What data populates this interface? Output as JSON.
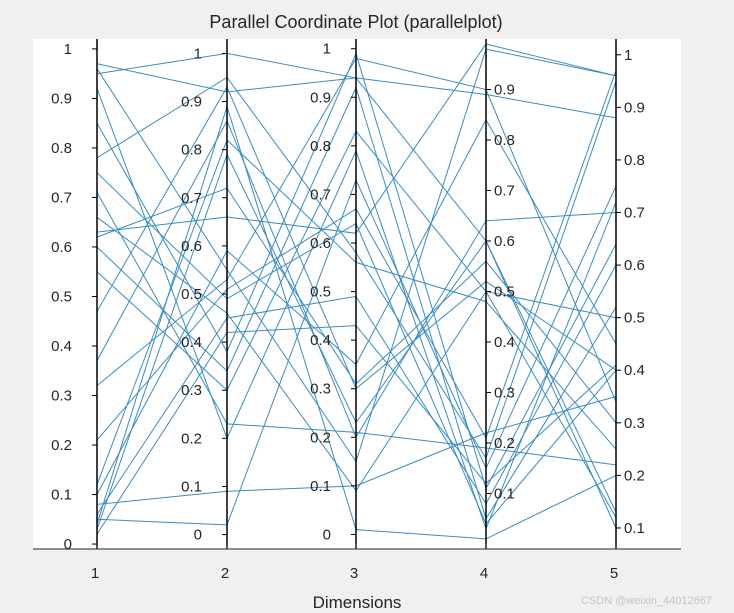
{
  "chart_data": {
    "type": "parallel-coordinates",
    "title": "Parallel Coordinate Plot (parallelplot)",
    "xlabel": "Dimensions",
    "dimensions": [
      "1",
      "2",
      "3",
      "4",
      "5"
    ],
    "axes": [
      {
        "name": "1",
        "range": [
          -0.01,
          1.02
        ],
        "ticks": [
          0,
          0.1,
          0.2,
          0.3,
          0.4,
          0.5,
          0.6,
          0.7,
          0.8,
          0.9,
          1
        ],
        "tick_labels": [
          "0",
          "0.1",
          "0.2",
          "0.3",
          "0.4",
          "0.5",
          "0.6",
          "0.7",
          "0.8",
          "0.9",
          "1"
        ],
        "label_side": "left"
      },
      {
        "name": "2",
        "range": [
          -0.03,
          1.03
        ],
        "ticks": [
          0,
          0.1,
          0.2,
          0.3,
          0.4,
          0.5,
          0.6,
          0.7,
          0.8,
          0.9,
          1
        ],
        "tick_labels": [
          "0",
          "0.1",
          "0.2",
          "0.3",
          "0.4",
          "0.5",
          "0.6",
          "0.7",
          "0.8",
          "0.9",
          "1"
        ],
        "label_side": "left"
      },
      {
        "name": "3",
        "range": [
          -0.03,
          1.02
        ],
        "ticks": [
          0,
          0.1,
          0.2,
          0.3,
          0.4,
          0.5,
          0.6,
          0.7,
          0.8,
          0.9,
          1
        ],
        "tick_labels": [
          "0",
          "0.1",
          "0.2",
          "0.3",
          "0.4",
          "0.5",
          "0.6",
          "0.7",
          "0.8",
          "0.9",
          "1"
        ],
        "label_side": "left"
      },
      {
        "name": "4",
        "range": [
          -0.01,
          1.0
        ],
        "ticks": [
          0.1,
          0.2,
          0.3,
          0.4,
          0.5,
          0.6,
          0.7,
          0.8,
          0.9
        ],
        "tick_labels": [
          "0.1",
          "0.2",
          "0.3",
          "0.4",
          "0.5",
          "0.6",
          "0.7",
          "0.8",
          "0.9"
        ],
        "label_side": "right"
      },
      {
        "name": "5",
        "range": [
          0.06,
          1.03
        ],
        "ticks": [
          0.1,
          0.2,
          0.3,
          0.4,
          0.5,
          0.6,
          0.7,
          0.8,
          0.9,
          1
        ],
        "tick_labels": [
          "0.1",
          "0.2",
          "0.3",
          "0.4",
          "0.5",
          "0.6",
          "0.7",
          "0.8",
          "0.9",
          "1"
        ],
        "label_side": "right"
      }
    ],
    "lines": [
      [
        0.97,
        0.92,
        0.94,
        0.89,
        0.88
      ],
      [
        0.95,
        1.0,
        0.94,
        0.6,
        0.1
      ],
      [
        0.96,
        0.55,
        0.15,
        0.98,
        0.96
      ],
      [
        0.92,
        0.2,
        0.79,
        0.03,
        0.72
      ],
      [
        0.85,
        0.38,
        0.99,
        0.11,
        0.64
      ],
      [
        0.78,
        0.95,
        0.58,
        0.17,
        0.95
      ],
      [
        0.75,
        0.49,
        0.64,
        0.04,
        0.4
      ],
      [
        0.71,
        0.23,
        0.21,
        0.19,
        0.22
      ],
      [
        0.66,
        0.46,
        0.09,
        0.5,
        0.5
      ],
      [
        0.63,
        0.66,
        0.62,
        0.99,
        0.96
      ],
      [
        0.62,
        0.72,
        0.31,
        0.56,
        0.3
      ],
      [
        0.6,
        0.34,
        0.92,
        0.05,
        0.52
      ],
      [
        0.55,
        0.3,
        0.83,
        0.5,
        0.12
      ],
      [
        0.47,
        0.93,
        0.3,
        0.52,
        0.4
      ],
      [
        0.37,
        0.86,
        0.2,
        0.64,
        0.7
      ],
      [
        0.32,
        0.53,
        0.98,
        0.9,
        0.34
      ],
      [
        0.21,
        0.51,
        0.67,
        0.21,
        0.97
      ],
      [
        0.12,
        0.82,
        0.56,
        0.48,
        0.25
      ],
      [
        0.1,
        0.59,
        0.35,
        0.84,
        0.45
      ],
      [
        0.08,
        0.09,
        0.1,
        0.22,
        0.35
      ],
      [
        0.06,
        0.45,
        0.49,
        0.08,
        0.6
      ],
      [
        0.05,
        0.02,
        0.73,
        0.15,
        0.75
      ],
      [
        0.04,
        0.89,
        0.01,
        0.01,
        0.2
      ],
      [
        0.02,
        0.42,
        0.43,
        0.12,
        0.41
      ],
      [
        0.03,
        0.79,
        0.23,
        0.6,
        0.13
      ]
    ],
    "line_color": "#3b8bc2",
    "axis_color": "#000000",
    "plot_background": "#ffffff",
    "figure_background": "#f0f0f0"
  },
  "watermark": "CSDN @weixin_44012667"
}
